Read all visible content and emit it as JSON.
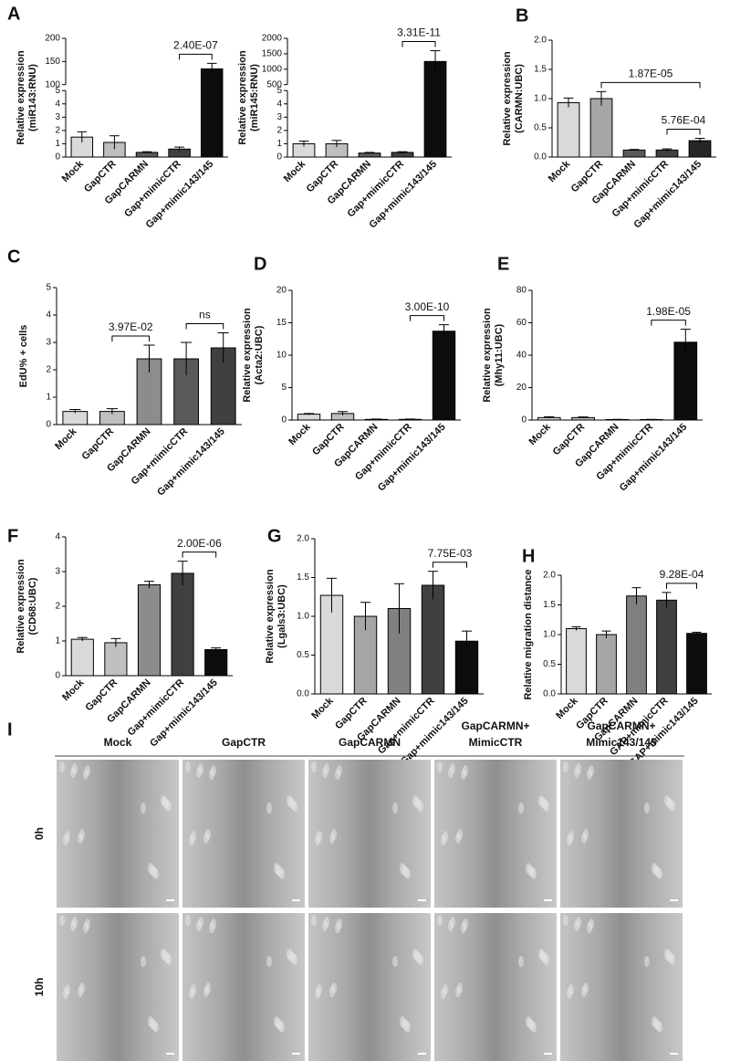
{
  "chart_data": [
    {
      "type": "bar",
      "panel": "A",
      "ylabel": [
        "Relative expression",
        "(miR143:RNU)"
      ],
      "categories": [
        "Mock",
        "GapCTR",
        "GapCARMN",
        "Gap+mimicCTR",
        "Gap+mimic143/145"
      ],
      "values": [
        1.5,
        1.1,
        0.35,
        0.6,
        134
      ],
      "errors": [
        0.4,
        0.5,
        0.05,
        0.15,
        12
      ],
      "colors": [
        "#d9d9d9",
        "#bfbfbf",
        "#595959",
        "#404040",
        "#0d0d0d"
      ],
      "ylim": [
        0,
        200
      ],
      "ybreak": [
        5,
        100
      ],
      "yticks": [
        0,
        1,
        2,
        3,
        4,
        5,
        100,
        150,
        200
      ],
      "annotations": [
        {
          "text": "2.40E-07",
          "between": [
            "Gap+mimicCTR",
            "Gap+mimic143/145"
          ]
        }
      ]
    },
    {
      "type": "bar",
      "ylabel": [
        "Relative expression",
        "(miR145:RNU)"
      ],
      "categories": [
        "Mock",
        "GapCTR",
        "GapCARMN",
        "Gap+mimicCTR",
        "Gap+mimic143/145"
      ],
      "values": [
        1.0,
        1.0,
        0.3,
        0.35,
        1250
      ],
      "errors": [
        0.2,
        0.25,
        0.05,
        0.05,
        350
      ],
      "colors": [
        "#d9d9d9",
        "#bfbfbf",
        "#595959",
        "#404040",
        "#0d0d0d"
      ],
      "ylim": [
        0,
        2000
      ],
      "ybreak": [
        5,
        500
      ],
      "yticks": [
        0,
        1,
        2,
        3,
        4,
        5,
        500,
        1000,
        1500,
        2000
      ],
      "annotations": [
        {
          "text": "3.31E-11",
          "between": [
            "Gap+mimicCTR",
            "Gap+mimic143/145"
          ]
        }
      ]
    },
    {
      "type": "bar",
      "panel": "B",
      "ylabel": [
        "Relative expression",
        "(CARMN:UBC)"
      ],
      "categories": [
        "Mock",
        "GapCTR",
        "GapCARMN",
        "Gap+mimicCTR",
        "Gap+mimic143/145"
      ],
      "values": [
        0.93,
        1.0,
        0.12,
        0.12,
        0.28
      ],
      "errors": [
        0.08,
        0.12,
        0.01,
        0.02,
        0.04
      ],
      "colors": [
        "#d9d9d9",
        "#a6a6a6",
        "#595959",
        "#404040",
        "#262626"
      ],
      "ylim": [
        0,
        2
      ],
      "yticks": [
        {
          "value": 0,
          "label": "0.0"
        },
        0.5,
        {
          "value": 1,
          "label": "1.0"
        },
        1.5,
        {
          "value": 2,
          "label": "2.0"
        }
      ],
      "annotations": [
        {
          "text": "5.76E-04",
          "between": [
            "Gap+mimicCTR",
            "Gap+mimic143/145"
          ]
        },
        {
          "text": "1.87E-05",
          "between": [
            "GapCTR",
            "Gap+mimic143/145"
          ]
        }
      ]
    },
    {
      "type": "bar",
      "panel": "C",
      "ylabel": [
        "EdU% + cells"
      ],
      "categories": [
        "Mock",
        "GapCTR",
        "GapCARMN",
        "Gap+mimicCTR",
        "Gap+mimic143/145"
      ],
      "values": [
        0.48,
        0.48,
        2.4,
        2.4,
        2.8
      ],
      "errors": [
        0.07,
        0.1,
        0.5,
        0.6,
        0.55
      ],
      "colors": [
        "#d9d9d9",
        "#bfbfbf",
        "#8c8c8c",
        "#595959",
        "#404040"
      ],
      "ylim": [
        0,
        5
      ],
      "yticks": [
        0,
        1,
        2,
        3,
        4,
        5
      ],
      "annotations": [
        {
          "text": "3.97E-02",
          "between": [
            "GapCTR",
            "GapCARMN"
          ]
        },
        {
          "text": "ns",
          "between": [
            "Gap+mimicCTR",
            "Gap+mimic143/145"
          ]
        }
      ]
    },
    {
      "type": "bar",
      "panel": "D",
      "ylabel": [
        "Relative expression",
        "(Acta2:UBC)"
      ],
      "categories": [
        "Mock",
        "GapCTR",
        "GapCARMN",
        "Gap+mimicCTR",
        "Gap+mimic143/145"
      ],
      "values": [
        0.9,
        1.0,
        0.1,
        0.1,
        13.7
      ],
      "errors": [
        0.1,
        0.3,
        0.05,
        0.05,
        1.0
      ],
      "colors": [
        "#d9d9d9",
        "#bfbfbf",
        "#8c8c8c",
        "#595959",
        "#0d0d0d"
      ],
      "ylim": [
        0,
        20
      ],
      "yticks": [
        0,
        5,
        10,
        15,
        20
      ],
      "annotations": [
        {
          "text": "3.00E-10",
          "between": [
            "Gap+mimicCTR",
            "Gap+mimic143/145"
          ]
        }
      ]
    },
    {
      "type": "bar",
      "panel": "E",
      "ylabel": [
        "Relative expression",
        "(Mhy11:UBC)"
      ],
      "categories": [
        "Mock",
        "GapCTR",
        "GapCARMN",
        "Gap+mimicCTR",
        "Gap+mimic143/145"
      ],
      "values": [
        1.5,
        1.5,
        0.3,
        0.3,
        48
      ],
      "errors": [
        0.5,
        0.4,
        0.1,
        0.1,
        8
      ],
      "colors": [
        "#d9d9d9",
        "#bfbfbf",
        "#8c8c8c",
        "#595959",
        "#0d0d0d"
      ],
      "ylim": [
        0,
        80
      ],
      "yticks": [
        0,
        20,
        40,
        60,
        80
      ],
      "annotations": [
        {
          "text": "1.98E-05",
          "between": [
            "Gap+mimicCTR",
            "Gap+mimic143/145"
          ]
        }
      ]
    },
    {
      "type": "bar",
      "panel": "F",
      "ylabel": [
        "Relative expression",
        "(CD68:UBC)"
      ],
      "categories": [
        "Mock",
        "GapCTR",
        "GapCARMN",
        "Gap+mimicCTR",
        "Gap+mimic143/145"
      ],
      "values": [
        1.05,
        0.95,
        2.62,
        2.95,
        0.75
      ],
      "errors": [
        0.05,
        0.12,
        0.1,
        0.35,
        0.05
      ],
      "colors": [
        "#d9d9d9",
        "#bfbfbf",
        "#8c8c8c",
        "#404040",
        "#0d0d0d"
      ],
      "ylim": [
        0,
        4
      ],
      "yticks": [
        0,
        1,
        2,
        3,
        4
      ],
      "annotations": [
        {
          "text": "2.00E-06",
          "between": [
            "Gap+mimicCTR",
            "Gap+mimic143/145"
          ]
        }
      ]
    },
    {
      "type": "bar",
      "panel": "G",
      "ylabel": [
        "Relative expression",
        "(Lgals3:UBC)"
      ],
      "categories": [
        "Mock",
        "GapCTR",
        "GapCARMN",
        "Gap+mimicCTR",
        "Gap+mimic143/145"
      ],
      "values": [
        1.27,
        1.0,
        1.1,
        1.4,
        0.68
      ],
      "errors": [
        0.22,
        0.18,
        0.32,
        0.18,
        0.13
      ],
      "colors": [
        "#d9d9d9",
        "#a6a6a6",
        "#808080",
        "#404040",
        "#0d0d0d"
      ],
      "ylim": [
        0,
        2
      ],
      "yticks": [
        {
          "value": 0,
          "label": "0.0"
        },
        0.5,
        {
          "value": 1,
          "label": "1.0"
        },
        1.5,
        {
          "value": 2,
          "label": "2.0"
        }
      ],
      "annotations": [
        {
          "text": "7.75E-03",
          "between": [
            "Gap+mimicCTR",
            "Gap+mimic143/145"
          ]
        }
      ]
    },
    {
      "type": "bar",
      "panel": "H",
      "ylabel": [
        "Relative migration distance"
      ],
      "categories": [
        "Mock",
        "GapCTR",
        "GapCARMN",
        "GAP+mimicCTR",
        "GAP+mimic143/145"
      ],
      "values": [
        1.1,
        1.0,
        1.65,
        1.58,
        1.02
      ],
      "errors": [
        0.03,
        0.06,
        0.14,
        0.13,
        0.02
      ],
      "colors": [
        "#d9d9d9",
        "#a6a6a6",
        "#808080",
        "#404040",
        "#0d0d0d"
      ],
      "ylim": [
        0,
        2
      ],
      "yticks": [
        {
          "value": 0,
          "label": "0.0"
        },
        0.5,
        {
          "value": 1,
          "label": "1.0"
        },
        1.5,
        {
          "value": 2,
          "label": "2.0"
        }
      ],
      "annotations": [
        {
          "text": "9.28E-04",
          "between": [
            "GAP+mimicCTR",
            "GAP+mimic143/145"
          ]
        }
      ]
    }
  ],
  "panel_i": {
    "panel": "I",
    "columns": [
      [
        "Mock"
      ],
      [
        "GapCTR"
      ],
      [
        "GapCARMN"
      ],
      [
        "GapCARMN+",
        "MimicCTR"
      ],
      [
        "GapCARMN+",
        "Mimic143/145"
      ]
    ],
    "rows": [
      "0h",
      "10h"
    ]
  }
}
